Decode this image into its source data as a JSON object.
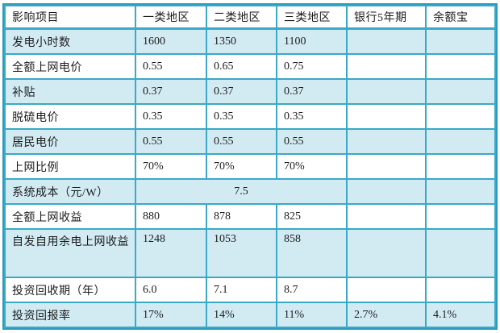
{
  "colors": {
    "grid_line": "#3aa9c7",
    "outer_border": "#2d9cbc",
    "row_highlight": "#d2ebf3",
    "header_background": "#ffffff",
    "text": "#1c1c1c"
  },
  "table": {
    "header": [
      "影响项目",
      "一类地区",
      "二类地区",
      "三类地区",
      "银行5年期",
      "余额宝"
    ],
    "rows": [
      {
        "cells": [
          "发电小时数",
          "1600",
          "1350",
          "1100",
          "",
          ""
        ]
      },
      {
        "cells": [
          "全额上网电价",
          "0.55",
          "0.65",
          "0.75",
          "",
          ""
        ]
      },
      {
        "cells": [
          "补贴",
          "0.37",
          "0.37",
          "0.37",
          "",
          ""
        ]
      },
      {
        "cells": [
          "脱硫电价",
          "0.35",
          "0.35",
          "0.35",
          "",
          ""
        ]
      },
      {
        "cells": [
          "居民电价",
          "0.55",
          "0.55",
          "0.55",
          "",
          ""
        ]
      },
      {
        "cells": [
          "上网比例",
          "70%",
          "70%",
          "70%",
          "",
          ""
        ]
      },
      {
        "cells": [
          "系统成本（元/W）",
          "7.5",
          "",
          ""
        ],
        "merged_colspan": 3
      },
      {
        "cells": [
          "全额上网收益",
          "880",
          "878",
          "825",
          "",
          ""
        ]
      },
      {
        "cells": [
          "自发自用余电上网收益",
          "1248",
          "1053",
          "858",
          "",
          ""
        ]
      },
      {
        "cells": [
          "投资回收期（年）",
          "6.0",
          "7.1",
          "8.7",
          "",
          ""
        ]
      },
      {
        "cells": [
          "投资回报率",
          "17%",
          "14%",
          "11%",
          "2.7%",
          "4.1%"
        ]
      }
    ]
  }
}
